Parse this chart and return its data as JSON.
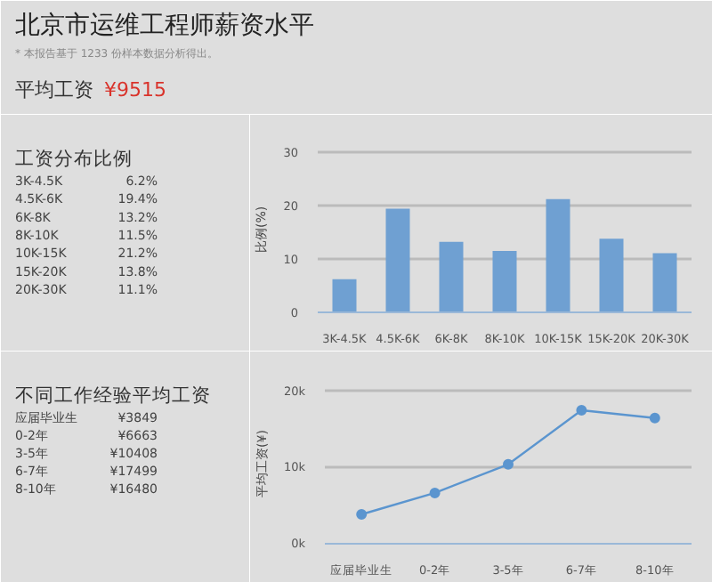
{
  "chart_data": [
    {
      "type": "other",
      "title": "北京市运维工程师薪资水平",
      "annotations": [
        "* 本报告基于 1233 份样本数据分析得出。",
        "平均工资",
        "¥9515"
      ]
    },
    {
      "type": "other",
      "title": "工资分布比例",
      "annotations": [
        "3K-4.5K",
        "6.2%",
        "4.5K-6K",
        "19.4%",
        "6K-8K",
        "13.2%",
        "8K-10K",
        "11.5%",
        "10K-15K",
        "21.2%",
        "15K-20K",
        "13.8%",
        "20K-30K",
        "11.1%"
      ]
    },
    {
      "type": "bar",
      "ylabel": "比例(%)",
      "categories": [
        "3K-4.5K",
        "4.5K-6K",
        "6K-8K",
        "8K-10K",
        "10K-15K",
        "15K-20K",
        "20K-30K"
      ],
      "values": [
        6.2,
        19.4,
        13.2,
        11.5,
        21.2,
        13.8,
        11.1
      ],
      "color": "#6fa0d2",
      "ylim": [
        0,
        31
      ],
      "yticks": [
        0,
        10,
        20,
        30
      ],
      "grid": "y"
    },
    {
      "type": "other",
      "title": "不同工作经验平均工资",
      "annotations": [
        "应届毕业生",
        "¥3849",
        "0-2年",
        "¥6663",
        "3-5年",
        "¥10408",
        "6-7年",
        "¥17499",
        "8-10年",
        "¥16480"
      ]
    },
    {
      "type": "line",
      "ylabel": "平均工资(¥)",
      "categories": [
        "应届毕业生",
        "0-2年",
        "3-5年",
        "6-7年",
        "8-10年"
      ],
      "values": [
        3849,
        6663,
        10408,
        17499,
        16480
      ],
      "color": "#5b95cf",
      "marker": "circle",
      "ylim": [
        0,
        21000
      ],
      "yticks": [
        {
          "value": 0,
          "label": "0k"
        },
        {
          "value": 10000,
          "label": "10k"
        },
        {
          "value": 20000,
          "label": "20k"
        }
      ],
      "grid": "y"
    }
  ]
}
